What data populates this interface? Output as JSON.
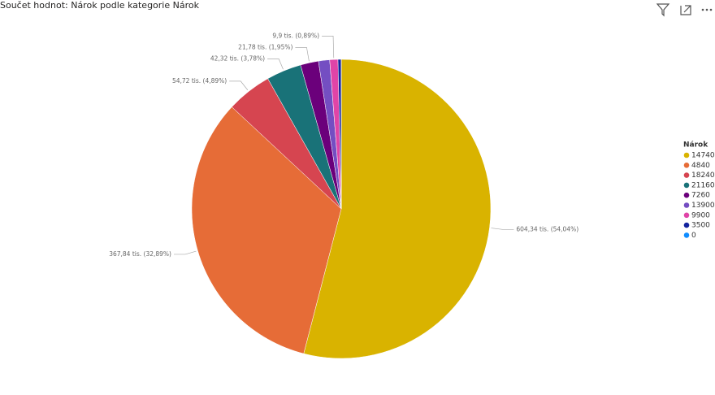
{
  "chart_data": {
    "type": "pie",
    "title": "Součet hodnot: Nárok podle kategorie Nárok",
    "legend_title": "Nárok",
    "legend_position": "right",
    "categories": [
      "14740",
      "4840",
      "18240",
      "21160",
      "7260",
      "13900",
      "9900",
      "3500",
      "0"
    ],
    "values": [
      604.34,
      367.84,
      54.72,
      42.32,
      21.78,
      13.5,
      9.9,
      3.9,
      0
    ],
    "value_labels": [
      "604,34 tis. (54,04%)",
      "367,84 tis. (32,89%)",
      "54,72 tis. (4,89%)",
      "42,32 tis. (3,78%)",
      "21,78 tis. (1,95%)",
      null,
      "9,9 tis. (0,89%)",
      null,
      null
    ],
    "colors": [
      "#D9B300",
      "#E66C37",
      "#D64550",
      "#197278",
      "#6B007B",
      "#744EC2",
      "#E044A7",
      "#12239E",
      "#118DFF"
    ]
  }
}
